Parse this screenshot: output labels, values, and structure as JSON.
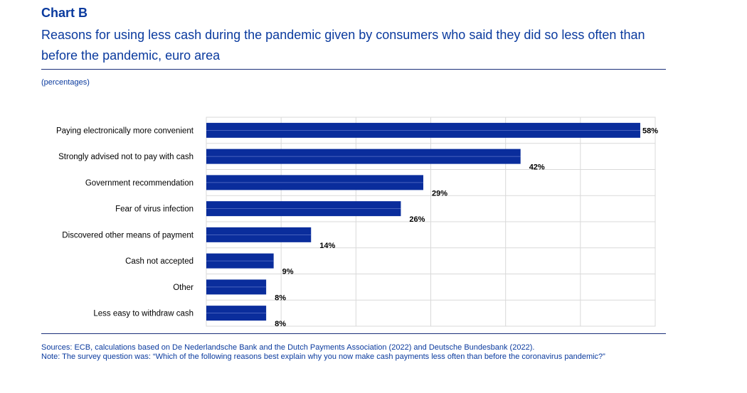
{
  "header": {
    "chart_label": "Chart B",
    "title": "Reasons for using less cash during the pandemic given by consumers who said they did so less often than before the pandemic, euro area",
    "unit": "(percentages)"
  },
  "footer": {
    "sources": "Sources: ECB, calculations based on De Nederlandsche Bank and the Dutch Payments Association (2022) and Deutsche Bundesbank (2022).",
    "note": "Note: The survey question was: “Which of the following reasons best explain why you now make cash payments less often than before the coronavirus pandemic?”"
  },
  "colors": {
    "bar": "#0a2d9c",
    "text_accent": "#0a3a9e",
    "grid": "#d9d9d9"
  },
  "chart_data": {
    "type": "bar",
    "orientation": "horizontal",
    "categories": [
      "Paying electronically more convenient",
      "Strongly advised not to pay with cash",
      "Government recommendation",
      "Fear of virus infection",
      "Discovered other means of payment",
      "Cash not accepted",
      "Other",
      "Less easy to withdraw cash"
    ],
    "values": [
      58,
      42,
      29,
      26,
      14,
      9,
      8,
      8
    ],
    "data_labels": [
      "58%",
      "42%",
      "29%",
      "26%",
      "14%",
      "9%",
      "8%",
      "8%"
    ],
    "xlim": [
      0,
      60
    ],
    "grid": true,
    "legend": "none"
  }
}
